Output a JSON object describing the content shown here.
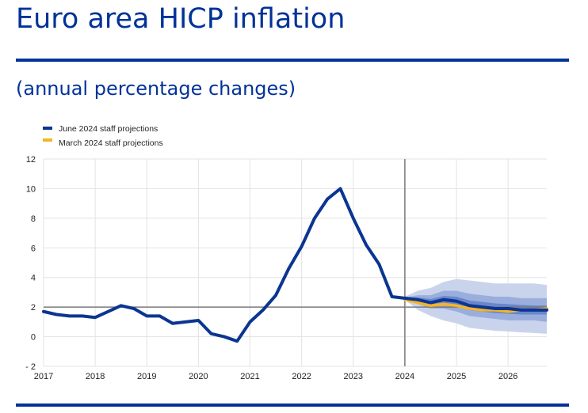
{
  "page": {
    "title": "Euro area HICP inflation",
    "subtitle": "(annual percentage changes)"
  },
  "colors": {
    "brand": "#003299",
    "june": "#0b3591",
    "march": "#f5b427",
    "band_outer": "#c9d4ec",
    "band_mid": "#9aaedd",
    "band_inner": "#6a86cc",
    "grid": "#e3e3e3",
    "reference": "#7a7a7a"
  },
  "chart_data": {
    "type": "line",
    "title": "Euro area HICP inflation",
    "subtitle": "(annual percentage changes)",
    "xlabel": "",
    "ylabel": "",
    "ylim": [
      -2,
      12
    ],
    "xlim": [
      2017,
      2026.75
    ],
    "yticks": [
      "12",
      "10",
      "8",
      "6",
      "4",
      "2",
      "0",
      "- 2"
    ],
    "ytick_values": [
      12,
      10,
      8,
      6,
      4,
      2,
      0,
      -2
    ],
    "xticks": [
      "2017",
      "2018",
      "2019",
      "2020",
      "2021",
      "2022",
      "2023",
      "2024",
      "2025",
      "2026"
    ],
    "xtick_values": [
      2017,
      2018,
      2019,
      2020,
      2021,
      2022,
      2023,
      2024,
      2025,
      2026
    ],
    "grid": true,
    "reference_line_y": 2,
    "projection_start_x": 2024,
    "legend": {
      "placement": "top-left",
      "entries": [
        "June 2024 staff projections",
        "March 2024 staff projections"
      ]
    },
    "series": [
      {
        "name": "June 2024 staff projections",
        "x": [
          2017,
          2017.25,
          2017.5,
          2017.75,
          2018,
          2018.25,
          2018.5,
          2018.75,
          2019,
          2019.25,
          2019.5,
          2019.75,
          2020,
          2020.25,
          2020.5,
          2020.75,
          2021,
          2021.25,
          2021.5,
          2021.75,
          2022,
          2022.25,
          2022.5,
          2022.75,
          2023,
          2023.25,
          2023.5,
          2023.75,
          2024,
          2024.25,
          2024.5,
          2024.75,
          2025,
          2025.25,
          2025.5,
          2025.75,
          2026,
          2026.25,
          2026.5,
          2026.75
        ],
        "values": [
          1.7,
          1.5,
          1.4,
          1.4,
          1.3,
          1.7,
          2.1,
          1.9,
          1.4,
          1.4,
          0.9,
          1.0,
          1.1,
          0.2,
          0.0,
          -0.3,
          1.0,
          1.8,
          2.8,
          4.6,
          6.1,
          8.0,
          9.3,
          10.0,
          8.0,
          6.2,
          4.9,
          2.7,
          2.6,
          2.5,
          2.3,
          2.5,
          2.4,
          2.1,
          2.0,
          1.9,
          1.9,
          1.8,
          1.8,
          1.8
        ]
      },
      {
        "name": "March 2024 staff projections",
        "x": [
          2024,
          2024.25,
          2024.5,
          2024.75,
          2025,
          2025.25,
          2025.5,
          2025.75,
          2026,
          2026.25,
          2026.5,
          2026.75
        ],
        "values": [
          2.5,
          2.3,
          2.1,
          2.2,
          2.1,
          1.9,
          1.8,
          1.8,
          1.7,
          1.8,
          1.8,
          1.9
        ]
      }
    ],
    "uncertainty_bands": {
      "x": [
        2024,
        2024.25,
        2024.5,
        2024.75,
        2025,
        2025.25,
        2025.5,
        2025.75,
        2026,
        2026.25,
        2026.5,
        2026.75
      ],
      "outer_upper": [
        2.7,
        3.1,
        3.3,
        3.7,
        3.9,
        3.8,
        3.7,
        3.6,
        3.6,
        3.6,
        3.6,
        3.5
      ],
      "outer_lower": [
        2.5,
        1.8,
        1.4,
        1.1,
        0.9,
        0.6,
        0.5,
        0.4,
        0.35,
        0.3,
        0.25,
        0.2
      ],
      "mid_upper": [
        2.65,
        2.8,
        2.8,
        3.1,
        3.1,
        2.9,
        2.8,
        2.7,
        2.7,
        2.6,
        2.6,
        2.6
      ],
      "mid_lower": [
        2.55,
        2.2,
        1.9,
        1.9,
        1.7,
        1.4,
        1.3,
        1.2,
        1.1,
        1.1,
        1.1,
        1.0
      ],
      "inner_upper": [
        2.62,
        2.65,
        2.55,
        2.75,
        2.7,
        2.45,
        2.35,
        2.25,
        2.2,
        2.15,
        2.1,
        2.1
      ],
      "inner_lower": [
        2.58,
        2.35,
        2.1,
        2.2,
        2.05,
        1.8,
        1.7,
        1.6,
        1.55,
        1.5,
        1.5,
        1.5
      ]
    }
  }
}
